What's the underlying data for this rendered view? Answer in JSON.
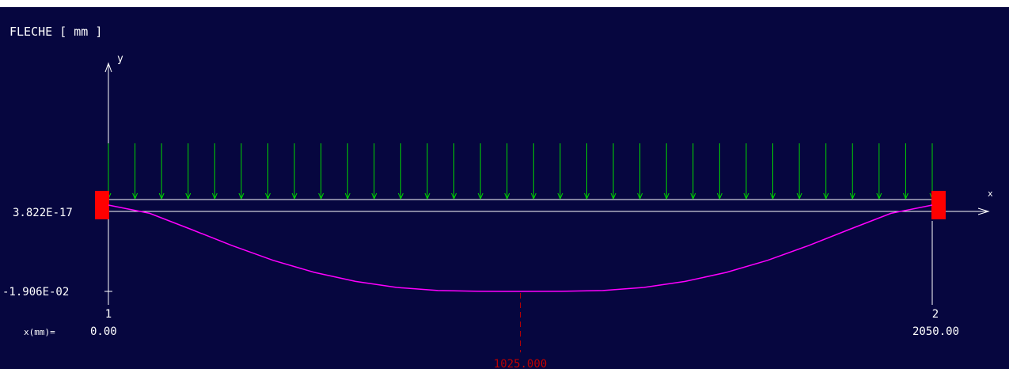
{
  "title": "FLECHE [ mm ]",
  "colors": {
    "background": "#06063f",
    "axes": "#ffffff",
    "load_arrows": "#00d400",
    "deflection_curve": "#ff00ff",
    "supports": "#ff0000",
    "max_marker": "#c00000"
  },
  "chart_data": {
    "type": "line",
    "title": "FLECHE [ mm ]",
    "xlabel": "x",
    "ylabel": "y",
    "x_axis_caption": "x(mm)=",
    "y_ticks": [
      "3.822E-17",
      "-1.906E-02"
    ],
    "y_tick_values": [
      3.822e-17,
      -0.01906
    ],
    "nodes": [
      {
        "id": "1",
        "x": 0.0,
        "x_label": "0.00"
      },
      {
        "id": "2",
        "x": 2050.0,
        "x_label": "2050.00"
      }
    ],
    "max_deflection": {
      "x": 1025.0,
      "x_label": "1025.000",
      "y": -0.01906
    },
    "distributed_load": {
      "arrow_count": 32,
      "direction": "down"
    },
    "series": [
      {
        "x": [
          0,
          102.5,
          205,
          307.5,
          410,
          512.5,
          615,
          717.5,
          820,
          922.5,
          1025,
          1127.5,
          1230,
          1332.5,
          1435,
          1537.5,
          1640,
          1742.5,
          1845,
          1947.5,
          2050
        ],
        "y": [
          0,
          -0.00181,
          -0.00533,
          -0.00894,
          -0.0122,
          -0.01487,
          -0.01686,
          -0.01818,
          -0.01886,
          -0.01904,
          -0.01906,
          -0.01904,
          -0.01886,
          -0.01818,
          -0.01686,
          -0.01487,
          -0.0122,
          -0.00894,
          -0.00533,
          -0.00181,
          0
        ]
      }
    ],
    "grid": false,
    "legend": "none"
  }
}
